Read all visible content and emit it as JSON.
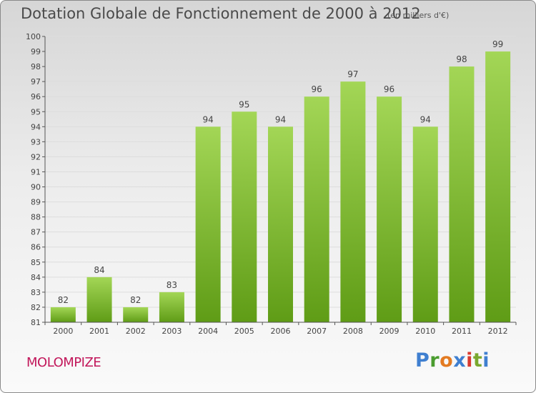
{
  "header": {
    "title": "Dotation Globale de Fonctionnement de 2000 à 2012",
    "unit": "(en milliers d'€)"
  },
  "footer": {
    "municipality": "MOLOMPIZE",
    "logo_letters": [
      "P",
      "r",
      "o",
      "x",
      "i",
      "t",
      "i"
    ]
  },
  "colors": {
    "bar_top": "#a3d656",
    "bar_bottom": "#5f9c16",
    "municipality": "#c2185b",
    "axis": "#555555",
    "grid": "#dddddd"
  },
  "chart_data": {
    "type": "bar",
    "title": "Dotation Globale de Fonctionnement de 2000 à 2012",
    "subtitle": "(en milliers d'€)",
    "xlabel": "",
    "ylabel": "",
    "categories": [
      "2000",
      "2001",
      "2002",
      "2003",
      "2004",
      "2005",
      "2006",
      "2007",
      "2008",
      "2009",
      "2010",
      "2011",
      "2012"
    ],
    "values": [
      82,
      84,
      82,
      83,
      94,
      95,
      94,
      96,
      97,
      96,
      94,
      98,
      99
    ],
    "ylim": [
      81,
      100
    ],
    "yticks": [
      81,
      82,
      83,
      84,
      85,
      86,
      87,
      88,
      89,
      90,
      91,
      92,
      93,
      94,
      95,
      96,
      97,
      98,
      99,
      100
    ],
    "grid": true,
    "data_labels": true
  }
}
